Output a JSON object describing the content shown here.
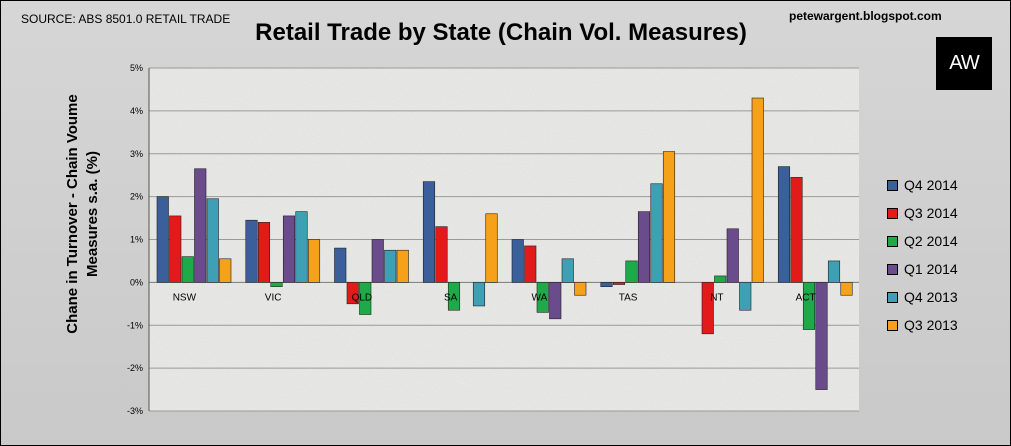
{
  "header": {
    "source": "SOURCE: ABS 8501.0 RETAIL TRADE",
    "blog": "petewargent.blogspot.com",
    "logo": "AW"
  },
  "chart_data": {
    "type": "bar",
    "title": "Retail Trade by State (Chain Vol. Measures)",
    "ylabel": "Chane in Turnover - Chain Voume Measures s.a. (%)",
    "xlabel": "",
    "categories": [
      "NSW",
      "VIC",
      "QLD",
      "SA",
      "WA",
      "TAS",
      "NT",
      "ACT"
    ],
    "ylim": [
      -3,
      5
    ],
    "yticks": [
      "-3%",
      "-2%",
      "-1%",
      "0%",
      "1%",
      "2%",
      "3%",
      "4%",
      "5%"
    ],
    "grid": true,
    "legend_position": "right",
    "series": [
      {
        "name": "Q4 2014",
        "color": "#3b5f9a",
        "values": [
          2.0,
          1.45,
          0.8,
          2.35,
          1.0,
          -0.1,
          0.0,
          2.7
        ]
      },
      {
        "name": "Q3 2014",
        "color": "#e31a1a",
        "values": [
          1.55,
          1.4,
          -0.5,
          1.3,
          0.85,
          -0.05,
          -1.2,
          2.45
        ]
      },
      {
        "name": "Q2 2014",
        "color": "#1faa4a",
        "values": [
          0.6,
          -0.1,
          -0.75,
          -0.65,
          -0.7,
          0.5,
          0.15,
          -1.1
        ]
      },
      {
        "name": "Q1 2014",
        "color": "#6a4b8c",
        "values": [
          2.65,
          1.55,
          1.0,
          0.0,
          -0.85,
          1.65,
          1.25,
          -2.5
        ]
      },
      {
        "name": "Q4 2013",
        "color": "#3f9fb5",
        "values": [
          1.95,
          1.65,
          0.75,
          -0.55,
          0.55,
          2.3,
          -0.65,
          0.5
        ]
      },
      {
        "name": "Q3 2013",
        "color": "#f5a11a",
        "values": [
          0.55,
          1.0,
          0.75,
          1.6,
          -0.3,
          3.05,
          4.3,
          -0.3
        ]
      }
    ]
  }
}
